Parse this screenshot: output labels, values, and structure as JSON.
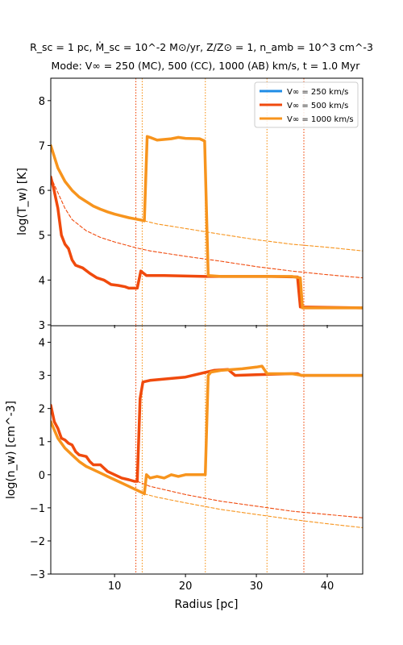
{
  "figure": {
    "title_line1": "R_sc = 1 pc, Ṁ_sc = 10^-2 M⊙/yr, Z/Z⊙ = 1, n_amb = 10^3 cm^-3",
    "title_line2": "Mode: V∞ = 250 (MC), 500 (CC), 1000 (AB) km/s, t = 1.0 Myr",
    "xlabel": "Radius [pc]"
  },
  "chart_data": [
    {
      "type": "line",
      "panel": "top",
      "ylabel": "log(T_w) [K]",
      "xlim": [
        1,
        45
      ],
      "ylim": [
        3,
        8.5
      ],
      "xticks": [
        10,
        20,
        30,
        40
      ],
      "yticks": [
        3,
        4,
        5,
        6,
        7,
        8
      ],
      "legend": {
        "placement": "top-right",
        "entries": [
          {
            "label": "V∞ = 250 km/s",
            "color": "#1f8ce6"
          },
          {
            "label": "V∞ = 500 km/s",
            "color": "#f04a0d"
          },
          {
            "label": "V∞ = 1000 km/s",
            "color": "#f7941d"
          }
        ]
      },
      "series": [
        {
          "name": "V∞ = 500 km/s",
          "color": "#f04a0d",
          "style": "solid",
          "points": [
            [
              1.0,
              6.3
            ],
            [
              1.4,
              6.05
            ],
            [
              2.0,
              5.6
            ],
            [
              2.5,
              5.0
            ],
            [
              3.0,
              4.8
            ],
            [
              3.5,
              4.7
            ],
            [
              4.0,
              4.45
            ],
            [
              4.5,
              4.33
            ],
            [
              5.5,
              4.27
            ],
            [
              6.5,
              4.15
            ],
            [
              7.5,
              4.05
            ],
            [
              8.5,
              4.0
            ],
            [
              9.5,
              3.9
            ],
            [
              10.5,
              3.88
            ],
            [
              11.5,
              3.85
            ],
            [
              12.0,
              3.82
            ],
            [
              13.2,
              3.82
            ],
            [
              13.7,
              4.2
            ],
            [
              14.5,
              4.1
            ],
            [
              17.0,
              4.1
            ],
            [
              23.0,
              4.08
            ],
            [
              32.0,
              4.08
            ],
            [
              35.8,
              4.07
            ],
            [
              36.2,
              3.4
            ],
            [
              45.0,
              3.38
            ]
          ]
        },
        {
          "name": "V∞ = 1000 km/s",
          "color": "#f7941d",
          "style": "solid",
          "points": [
            [
              1.0,
              7.0
            ],
            [
              2.0,
              6.5
            ],
            [
              3.0,
              6.2
            ],
            [
              4.0,
              6.0
            ],
            [
              5.0,
              5.85
            ],
            [
              6.0,
              5.75
            ],
            [
              7.0,
              5.65
            ],
            [
              8.0,
              5.58
            ],
            [
              9.0,
              5.52
            ],
            [
              10.0,
              5.47
            ],
            [
              11.0,
              5.43
            ],
            [
              12.0,
              5.39
            ],
            [
              13.0,
              5.36
            ],
            [
              14.0,
              5.33
            ],
            [
              14.2,
              5.32
            ],
            [
              14.6,
              7.2
            ],
            [
              15.0,
              7.18
            ],
            [
              16.0,
              7.12
            ],
            [
              18.0,
              7.15
            ],
            [
              19.0,
              7.18
            ],
            [
              20.0,
              7.16
            ],
            [
              22.0,
              7.15
            ],
            [
              22.7,
              7.1
            ],
            [
              23.2,
              4.1
            ],
            [
              25.0,
              4.08
            ],
            [
              35.0,
              4.08
            ],
            [
              36.2,
              4.05
            ],
            [
              36.5,
              3.38
            ],
            [
              45.0,
              3.38
            ]
          ]
        },
        {
          "name": "",
          "color": "#f04a0d",
          "style": "dashed",
          "points": [
            [
              1.0,
              6.3
            ],
            [
              2.0,
              5.95
            ],
            [
              3.0,
              5.6
            ],
            [
              4.0,
              5.35
            ],
            [
              6.0,
              5.1
            ],
            [
              8.0,
              4.95
            ],
            [
              10.0,
              4.85
            ],
            [
              13.0,
              4.72
            ],
            [
              15.0,
              4.65
            ],
            [
              20.0,
              4.53
            ],
            [
              25.0,
              4.42
            ],
            [
              30.0,
              4.3
            ],
            [
              35.0,
              4.2
            ],
            [
              40.0,
              4.12
            ],
            [
              45.0,
              4.05
            ]
          ]
        },
        {
          "name": "",
          "color": "#f7941d",
          "style": "dashed",
          "points": [
            [
              14.2,
              5.32
            ],
            [
              16.0,
              5.25
            ],
            [
              20.0,
              5.15
            ],
            [
              25.0,
              5.02
            ],
            [
              30.0,
              4.9
            ],
            [
              35.0,
              4.8
            ],
            [
              40.0,
              4.73
            ],
            [
              45.0,
              4.65
            ]
          ]
        }
      ]
    },
    {
      "type": "line",
      "panel": "bottom",
      "ylabel": "log(n_w) [cm^-3]",
      "xlim": [
        1,
        45
      ],
      "ylim": [
        -3,
        4.5
      ],
      "xticks": [
        10,
        20,
        30,
        40
      ],
      "yticks": [
        -3,
        -2,
        -1,
        0,
        1,
        2,
        3,
        4
      ],
      "series": [
        {
          "name": "V∞ = 500 km/s",
          "color": "#f04a0d",
          "style": "solid",
          "points": [
            [
              1.0,
              2.1
            ],
            [
              1.5,
              1.6
            ],
            [
              2.0,
              1.4
            ],
            [
              2.5,
              1.1
            ],
            [
              3.0,
              1.05
            ],
            [
              3.5,
              0.95
            ],
            [
              4.0,
              0.9
            ],
            [
              4.5,
              0.7
            ],
            [
              5.0,
              0.6
            ],
            [
              6.0,
              0.55
            ],
            [
              6.5,
              0.4
            ],
            [
              7.0,
              0.3
            ],
            [
              8.0,
              0.3
            ],
            [
              9.0,
              0.1
            ],
            [
              10.0,
              0.0
            ],
            [
              11.0,
              -0.1
            ],
            [
              12.0,
              -0.15
            ],
            [
              12.8,
              -0.2
            ],
            [
              13.2,
              -0.2
            ],
            [
              13.6,
              2.3
            ],
            [
              14.0,
              2.8
            ],
            [
              15.0,
              2.85
            ],
            [
              20.0,
              2.95
            ],
            [
              24.0,
              3.15
            ],
            [
              26.0,
              3.18
            ],
            [
              27.0,
              3.0
            ],
            [
              30.0,
              3.02
            ],
            [
              33.0,
              3.04
            ],
            [
              35.0,
              3.05
            ],
            [
              35.8,
              3.05
            ],
            [
              36.3,
              3.0
            ],
            [
              45.0,
              3.0
            ]
          ]
        },
        {
          "name": "V∞ = 1000 km/s",
          "color": "#f7941d",
          "style": "solid",
          "points": [
            [
              1.0,
              1.6
            ],
            [
              2.0,
              1.1
            ],
            [
              3.0,
              0.8
            ],
            [
              4.0,
              0.6
            ],
            [
              5.0,
              0.4
            ],
            [
              6.0,
              0.25
            ],
            [
              7.0,
              0.15
            ],
            [
              8.0,
              0.05
            ],
            [
              9.0,
              -0.05
            ],
            [
              10.0,
              -0.15
            ],
            [
              11.0,
              -0.25
            ],
            [
              12.0,
              -0.35
            ],
            [
              13.0,
              -0.45
            ],
            [
              14.0,
              -0.55
            ],
            [
              14.2,
              -0.58
            ],
            [
              14.5,
              0.0
            ],
            [
              15.0,
              -0.1
            ],
            [
              16.0,
              -0.05
            ],
            [
              17.0,
              -0.1
            ],
            [
              18.0,
              0.0
            ],
            [
              19.0,
              -0.05
            ],
            [
              20.0,
              0.0
            ],
            [
              22.0,
              0.0
            ],
            [
              22.8,
              0.0
            ],
            [
              23.2,
              3.0
            ],
            [
              23.6,
              3.1
            ],
            [
              25.0,
              3.15
            ],
            [
              28.0,
              3.2
            ],
            [
              30.0,
              3.25
            ],
            [
              30.8,
              3.28
            ],
            [
              31.5,
              3.05
            ],
            [
              35.0,
              3.05
            ],
            [
              36.5,
              3.0
            ],
            [
              45.0,
              3.0
            ]
          ]
        },
        {
          "name": "",
          "color": "#f04a0d",
          "style": "dashed",
          "points": [
            [
              13.2,
              -0.2
            ],
            [
              15.0,
              -0.35
            ],
            [
              20.0,
              -0.6
            ],
            [
              25.0,
              -0.8
            ],
            [
              30.0,
              -0.95
            ],
            [
              35.0,
              -1.1
            ],
            [
              40.0,
              -1.2
            ],
            [
              45.0,
              -1.3
            ]
          ]
        },
        {
          "name": "",
          "color": "#f7941d",
          "style": "dashed",
          "points": [
            [
              14.2,
              -0.58
            ],
            [
              16.0,
              -0.68
            ],
            [
              20.0,
              -0.85
            ],
            [
              25.0,
              -1.05
            ],
            [
              30.0,
              -1.2
            ],
            [
              35.0,
              -1.35
            ],
            [
              40.0,
              -1.48
            ],
            [
              45.0,
              -1.6
            ]
          ]
        }
      ]
    }
  ],
  "vlines": [
    {
      "x": 13.0,
      "color": "#f04a0d"
    },
    {
      "x": 13.9,
      "color": "#f7941d"
    },
    {
      "x": 22.8,
      "color": "#f7941d"
    },
    {
      "x": 31.5,
      "color": "#f7941d"
    },
    {
      "x": 36.7,
      "color": "#f04a0d"
    }
  ]
}
